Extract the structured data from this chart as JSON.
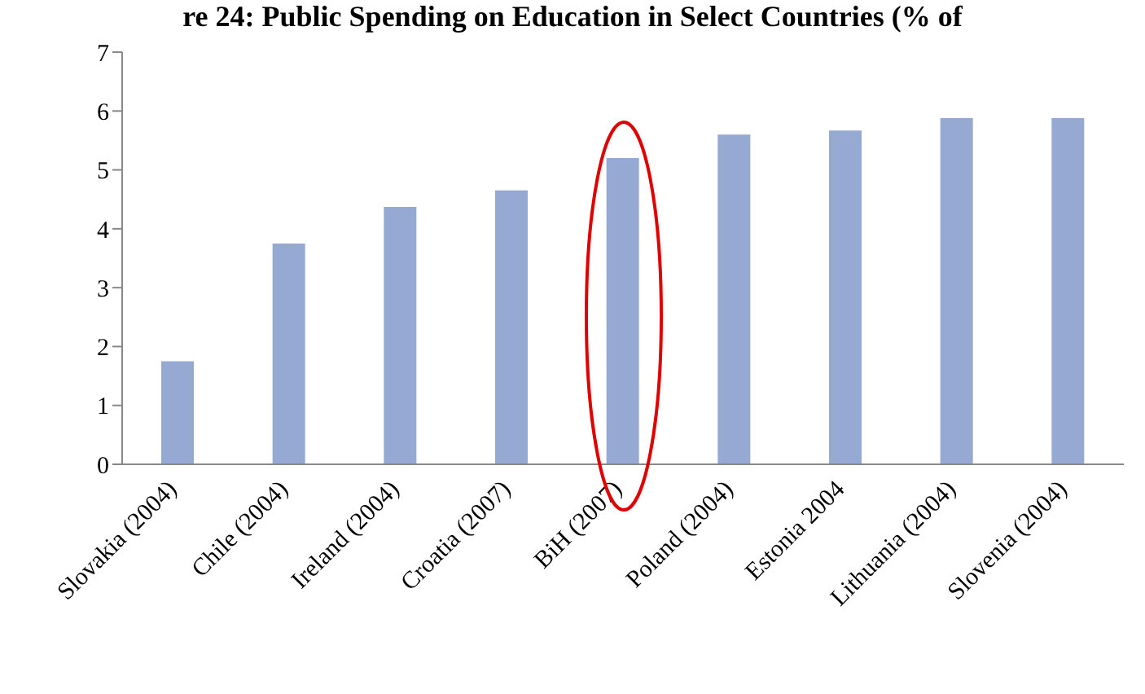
{
  "chart_data": {
    "type": "bar",
    "title": "re 24: Public Spending on Education in Select Countries (% of",
    "categories": [
      "Slovakia (2004)",
      "Chile (2004)",
      "Ireland (2004)",
      "Croatia (2007)",
      "BiH (2007)",
      "Poland (2004)",
      "Estonia 2004",
      "Lithuania (2004)",
      "Slovenia (2004)"
    ],
    "values": [
      1.75,
      3.75,
      4.37,
      4.65,
      5.2,
      5.6,
      5.67,
      5.88,
      5.88
    ],
    "color": "#95a9d2",
    "ylim": [
      0,
      7
    ],
    "yticks": [
      0,
      1,
      2,
      3,
      4,
      5,
      6,
      7
    ],
    "grid": false
  }
}
